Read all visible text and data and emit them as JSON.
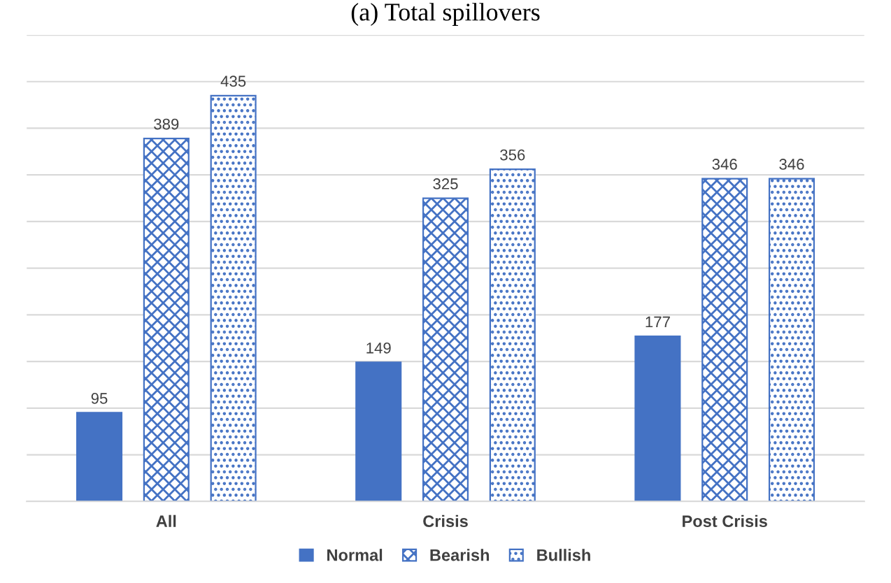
{
  "chart_data": {
    "type": "bar",
    "title": "(a) Total spillovers",
    "categories": [
      "All",
      "Crisis",
      "Post Crisis"
    ],
    "series": [
      {
        "name": "Normal",
        "color": "#4472c4",
        "values": [
          95,
          149,
          177
        ]
      },
      {
        "name": "Bearish",
        "color": "#4472c4",
        "values": [
          389,
          325,
          346
        ]
      },
      {
        "name": "Bullish",
        "color": "#4472c4",
        "values": [
          435,
          356,
          346
        ]
      }
    ],
    "ylim": [
      0,
      500
    ],
    "yticks": [
      {
        "value": 0,
        "label": null
      },
      {
        "value": 50,
        "label": null
      },
      {
        "value": 100,
        "label": null
      },
      {
        "value": 150,
        "label": null
      },
      {
        "value": 200,
        "label": null
      },
      {
        "value": 250,
        "label": null
      },
      {
        "value": 300,
        "label": null
      },
      {
        "value": 350,
        "label": null
      },
      {
        "value": 400,
        "label": null
      },
      {
        "value": 450,
        "label": null
      },
      {
        "value": 500,
        "label": null
      }
    ],
    "tick_labels": "x",
    "grid": "y",
    "legend": "bottom",
    "data_labels": true
  }
}
